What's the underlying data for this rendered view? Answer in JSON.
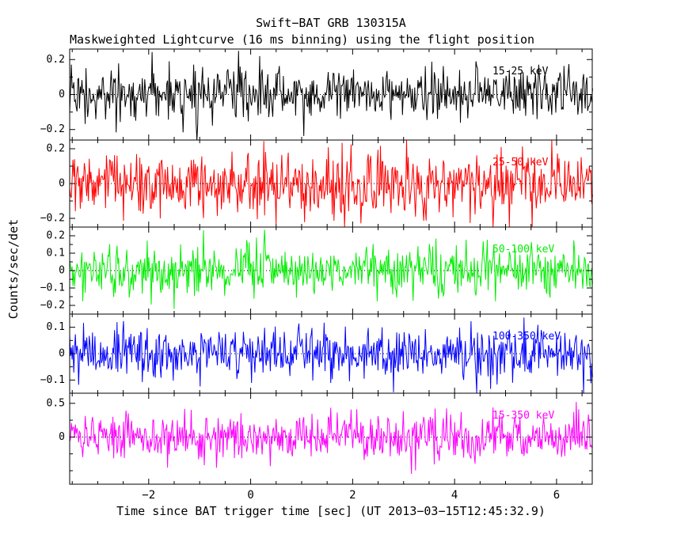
{
  "chart_data": {
    "type": "line",
    "title": "Swift−BAT GRB 130315A",
    "subtitle": "Maskweighted Lightcurve (16 ms binning) using the flight position",
    "xlabel": "Time since BAT trigger time [sec] (UT 2013−03−15T12:45:32.9)",
    "ylabel": "Counts/sec/det",
    "x_range": [
      -3.55,
      6.7
    ],
    "x_ticks": [
      -2,
      0,
      2,
      4,
      6
    ],
    "x_minor_step": 0.5,
    "bin_seconds": 0.016,
    "background": "#ffffff",
    "axis_color": "#000000",
    "zero_line": {
      "style": "dotted",
      "color": "#000000",
      "value": 0
    },
    "legend_position": "inside-right-per-panel",
    "grid": false,
    "panels": [
      {
        "band": "15-25 keV",
        "color": "#000000",
        "ylim": [
          -0.26,
          0.26
        ],
        "yticks": [
          0.2,
          0,
          -0.2
        ],
        "mean": 0,
        "noise_sigma": 0.075,
        "peak_abs": 0.25,
        "seed": 11
      },
      {
        "band": "25-50 keV",
        "color": "#ff0000",
        "ylim": [
          -0.25,
          0.25
        ],
        "yticks": [
          0.2,
          0,
          -0.2
        ],
        "mean": 0,
        "noise_sigma": 0.09,
        "peak_abs": 0.25,
        "seed": 23
      },
      {
        "band": "50-100 keV",
        "color": "#00ee00",
        "ylim": [
          -0.25,
          0.25
        ],
        "yticks": [
          0.2,
          0.1,
          0,
          -0.1,
          -0.2
        ],
        "mean": 0,
        "noise_sigma": 0.07,
        "peak_abs": 0.25,
        "seed": 37
      },
      {
        "band": "100-350 keV",
        "color": "#0000ff",
        "ylim": [
          -0.15,
          0.15
        ],
        "yticks": [
          0.1,
          0,
          -0.1
        ],
        "mean": 0,
        "noise_sigma": 0.05,
        "peak_abs": 0.15,
        "seed": 53
      },
      {
        "band": "15-350 keV",
        "color": "#ff00ff",
        "ylim": [
          -0.7,
          0.65
        ],
        "yticks": [
          0.5,
          0
        ],
        "mean": 0,
        "noise_sigma": 0.17,
        "peak_abs": 0.65,
        "seed": 71
      }
    ]
  }
}
